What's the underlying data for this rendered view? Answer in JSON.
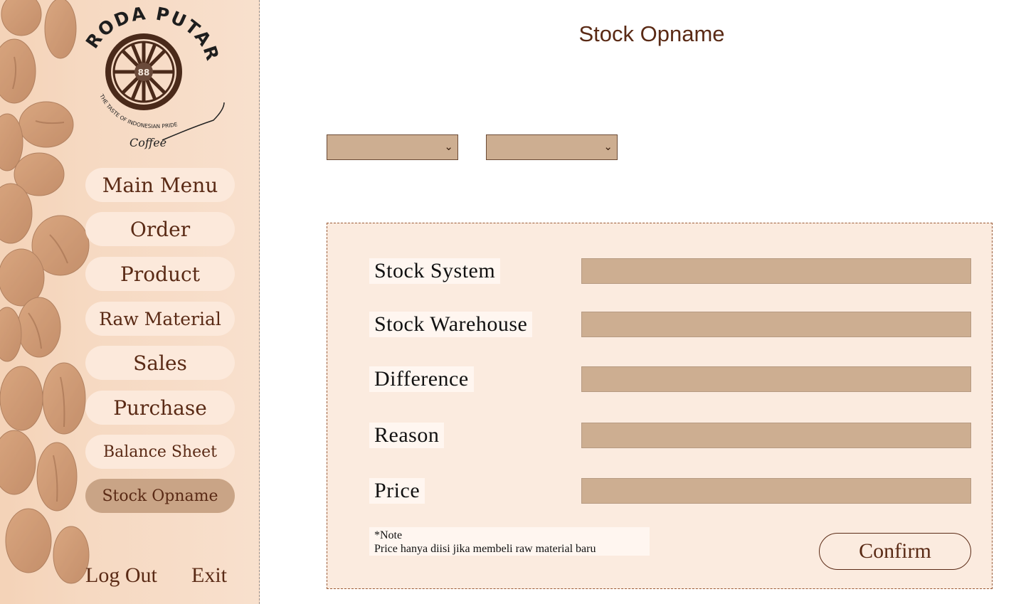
{
  "brand": {
    "name": "RODA PUTAR",
    "number": "88",
    "tagline": "THE TASTE OF INDONESIAN PRIDE",
    "product": "Coffee"
  },
  "sidebar": {
    "items": [
      {
        "label": "Main Menu"
      },
      {
        "label": "Order"
      },
      {
        "label": "Product"
      },
      {
        "label": "Raw Material"
      },
      {
        "label": "Sales"
      },
      {
        "label": "Purchase"
      },
      {
        "label": "Balance Sheet"
      },
      {
        "label": "Stock Opname"
      }
    ],
    "active_index": 7,
    "logout_label": "Log Out",
    "exit_label": "Exit"
  },
  "main": {
    "title": "Stock Opname",
    "selects": [
      {
        "value": ""
      },
      {
        "value": ""
      }
    ],
    "fields": [
      {
        "label": "Stock System",
        "value": ""
      },
      {
        "label": "Stock Warehouse",
        "value": ""
      },
      {
        "label": "Difference",
        "value": ""
      },
      {
        "label": "Reason",
        "value": ""
      },
      {
        "label": "Price",
        "value": ""
      }
    ],
    "note_title": "*Note",
    "note_text": "Price hanya diisi jika membeli raw material baru",
    "confirm_label": "Confirm"
  },
  "colors": {
    "accent": "#5a2a15",
    "field": "#cdae91",
    "panel": "#fbebdf",
    "nav_button": "#fce9db",
    "nav_active": "#c9a486"
  }
}
